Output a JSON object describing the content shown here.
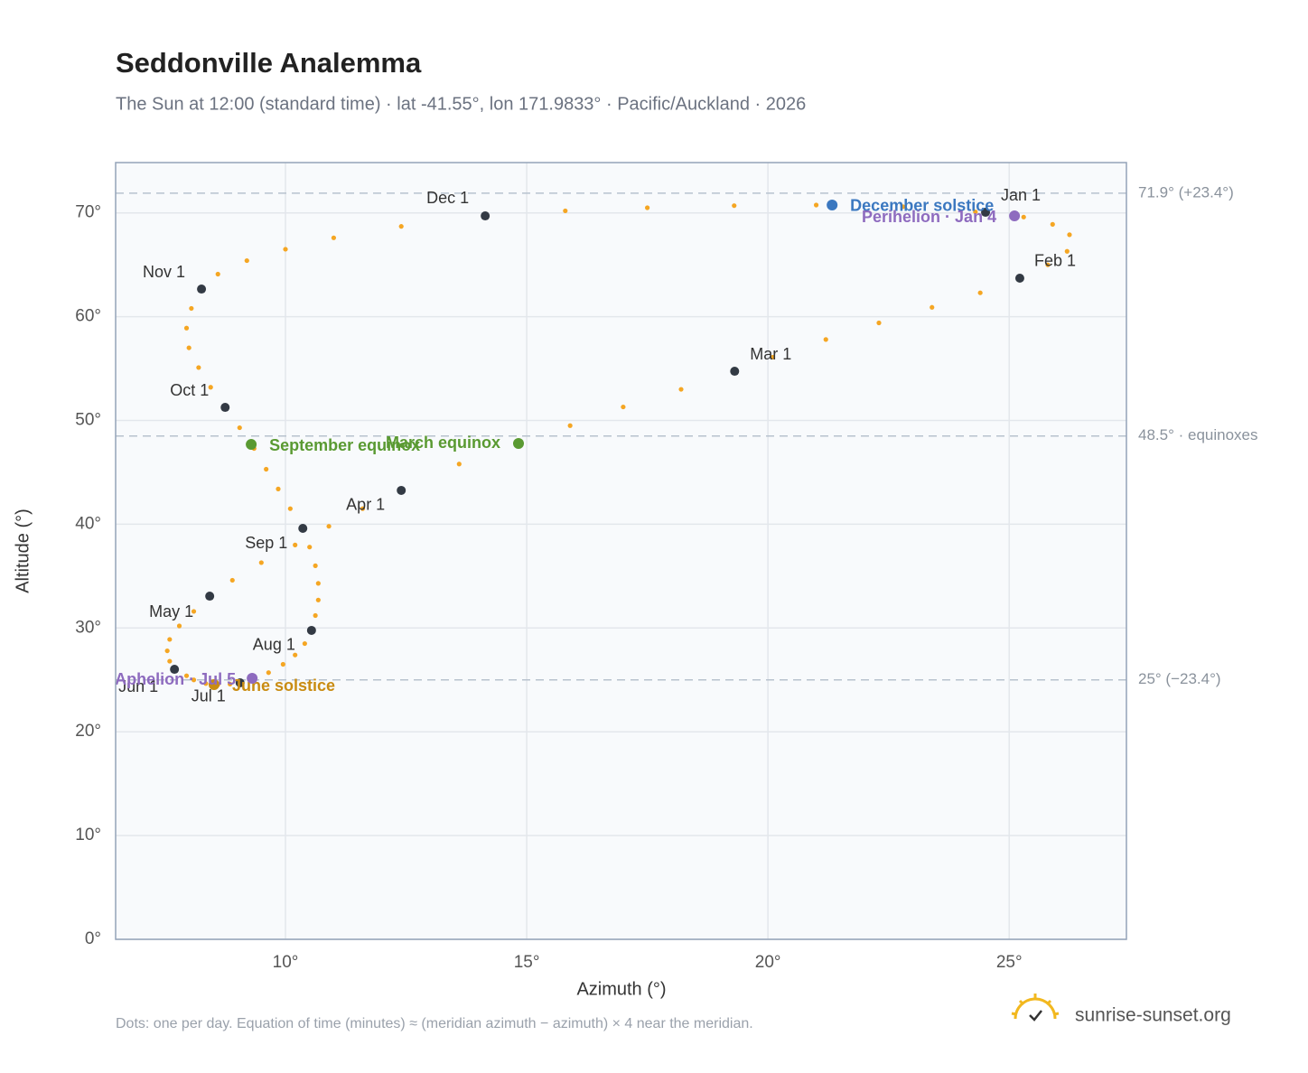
{
  "chart_data": {
    "type": "scatter",
    "title": "Seddonville Analemma",
    "subtitle": "The Sun at 12:00 (standard time) · lat -41.55°, lon 171.9833° · Pacific/Auckland · 2026",
    "x_label": "Azimuth (°)",
    "y_label": "Altitude (°)",
    "xlim": [
      6.48,
      27.43
    ],
    "ylim": [
      0,
      74.85
    ],
    "xticks": [
      {
        "value": 10,
        "label": "10°"
      },
      {
        "value": 15,
        "label": "15°"
      },
      {
        "value": 20,
        "label": "20°"
      },
      {
        "value": 25,
        "label": "25°"
      }
    ],
    "yticks": [
      {
        "value": 0,
        "label": "0°"
      },
      {
        "value": 10,
        "label": "10°"
      },
      {
        "value": 20,
        "label": "20°"
      },
      {
        "value": 30,
        "label": "30°"
      },
      {
        "value": 40,
        "label": "40°"
      },
      {
        "value": 50,
        "label": "50°"
      },
      {
        "value": 60,
        "label": "60°"
      },
      {
        "value": 70,
        "label": "70°"
      }
    ],
    "grid": true,
    "series": [
      {
        "color": "#f5a623",
        "x": [
          24.51,
          25.3,
          25.9,
          26.25,
          26.2,
          25.8,
          25.22,
          24.4,
          23.4,
          22.3,
          21.2,
          20.1,
          19.31,
          18.2,
          17.0,
          15.9,
          14.83,
          13.6,
          12.4,
          11.6,
          10.9,
          10.2,
          9.5,
          8.9,
          8.43,
          8.1,
          7.8,
          7.6,
          7.55,
          7.6,
          7.7,
          7.95,
          8.1,
          8.35,
          8.6,
          8.85,
          9.06,
          9.35,
          9.65,
          9.95,
          10.2,
          10.4,
          10.54,
          10.62,
          10.68,
          10.68,
          10.62,
          10.5,
          10.36,
          10.1,
          9.85,
          9.6,
          9.35,
          9.05,
          8.75,
          8.45,
          8.2,
          8.0,
          7.95,
          8.05,
          8.26,
          8.6,
          9.2,
          10.0,
          11.0,
          12.4,
          14.14,
          15.8,
          17.5,
          19.3,
          21.0,
          22.8,
          24.3
        ],
        "values": [
          70.06,
          69.6,
          68.9,
          67.9,
          66.3,
          65.0,
          63.71,
          62.3,
          60.9,
          59.4,
          57.8,
          56.1,
          54.74,
          53.0,
          51.3,
          49.5,
          47.78,
          45.8,
          43.26,
          41.5,
          39.8,
          38.0,
          36.3,
          34.6,
          33.07,
          31.6,
          30.2,
          28.9,
          27.8,
          26.8,
          26.02,
          25.4,
          25.0,
          24.65,
          24.55,
          24.6,
          24.72,
          25.1,
          25.7,
          26.5,
          27.4,
          28.5,
          29.77,
          31.2,
          32.7,
          34.3,
          36.0,
          37.8,
          39.6,
          41.5,
          43.4,
          45.3,
          47.3,
          49.3,
          51.26,
          53.2,
          55.1,
          57.0,
          58.9,
          60.8,
          62.66,
          64.1,
          65.4,
          66.5,
          67.6,
          68.7,
          69.71,
          70.2,
          70.5,
          70.7,
          70.76,
          70.6,
          70.1
        ]
      }
    ],
    "months": {
      "color": "#333a44",
      "labels": [
        "Jan 1",
        "Feb 1",
        "Mar 1",
        "Apr 1",
        "May 1",
        "Jun 1",
        "Jul 1",
        "Aug 1",
        "Sep 1",
        "Oct 1",
        "Nov 1",
        "Dec 1"
      ],
      "x": [
        24.51,
        25.22,
        19.31,
        12.4,
        8.43,
        7.7,
        9.06,
        10.54,
        10.36,
        8.75,
        8.26,
        14.14
      ],
      "values": [
        70.06,
        63.71,
        54.74,
        43.26,
        33.07,
        26.02,
        24.72,
        29.77,
        39.6,
        51.26,
        62.66,
        69.71
      ]
    },
    "events": [
      {
        "label": "December solstice",
        "x": 21.33,
        "value": 70.76,
        "color": "#3b78c0"
      },
      {
        "label": "Perihelion · Jan 4",
        "x": 25.11,
        "value": 69.71,
        "color": "#8e6bbf"
      },
      {
        "label": "March equinox",
        "x": 14.83,
        "value": 47.78,
        "color": "#5a9a32"
      },
      {
        "label": "September equinox",
        "x": 9.29,
        "value": 47.69,
        "color": "#5a9a32"
      },
      {
        "label": "June solstice",
        "x": 8.52,
        "value": 24.54,
        "color": "#c98c12"
      },
      {
        "label": "Aphelion · Jul 5",
        "x": 9.31,
        "value": 25.15,
        "color": "#8e6bbf"
      }
    ],
    "reference_lines": [
      {
        "value": 71.9,
        "label": "71.9° (+23.4°)"
      },
      {
        "value": 48.5,
        "label": "48.5° · equinoxes"
      },
      {
        "value": 25,
        "label": "25° (−23.4°)"
      }
    ],
    "footnote": "Dots: one per day. Equation of time (minutes) ≈ (meridian azimuth − azimuth) × 4 near the meridian.",
    "brand": "sunrise-sunset.org"
  }
}
